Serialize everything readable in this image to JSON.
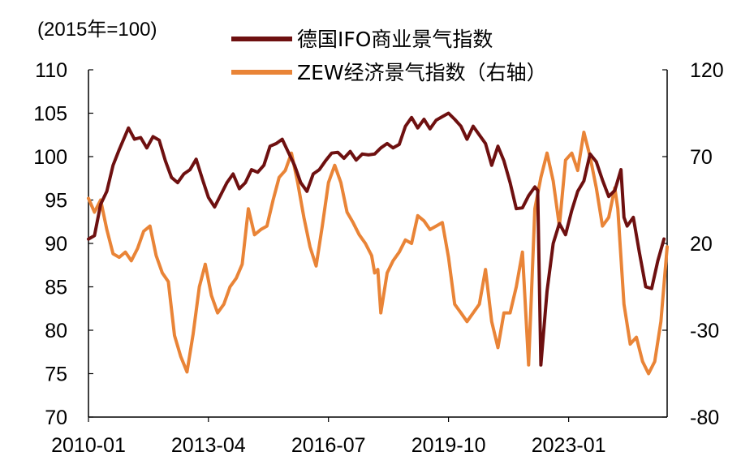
{
  "chart_data": {
    "type": "line",
    "unit_note": "(2015年=100)",
    "x_tick_labels": [
      "2010-01",
      "2013-04",
      "2016-07",
      "2019-10",
      "2023-01"
    ],
    "left_axis": {
      "ylim": [
        70,
        110
      ],
      "ticks": [
        "70",
        "75",
        "80",
        "85",
        "90",
        "95",
        "100",
        "105",
        "110"
      ]
    },
    "right_axis": {
      "ylim": [
        -80,
        120
      ],
      "ticks": [
        "-80",
        "-30",
        "20",
        "70",
        "120"
      ]
    },
    "grid": false,
    "legend_position": "top",
    "series": [
      {
        "name": "德国IFO商业景气指数",
        "axis": "left",
        "color": "#6e1010",
        "points": [
          [
            "2010-01",
            90.5
          ],
          [
            "2010-03",
            90.9
          ],
          [
            "2010-05",
            94.5
          ],
          [
            "2010-07",
            96.0
          ],
          [
            "2010-09",
            99.0
          ],
          [
            "2010-11",
            100.8
          ],
          [
            "2011-02",
            103.3
          ],
          [
            "2011-04",
            102.0
          ],
          [
            "2011-06",
            102.2
          ],
          [
            "2011-08",
            101.0
          ],
          [
            "2011-10",
            102.3
          ],
          [
            "2011-12",
            101.9
          ],
          [
            "2012-02",
            99.5
          ],
          [
            "2012-04",
            97.6
          ],
          [
            "2012-06",
            97.0
          ],
          [
            "2012-08",
            98.0
          ],
          [
            "2012-10",
            98.5
          ],
          [
            "2012-12",
            99.7
          ],
          [
            "2013-02",
            97.4
          ],
          [
            "2013-04",
            95.3
          ],
          [
            "2013-06",
            94.2
          ],
          [
            "2013-08",
            95.6
          ],
          [
            "2013-10",
            97.0
          ],
          [
            "2013-12",
            98.0
          ],
          [
            "2014-02",
            96.3
          ],
          [
            "2014-04",
            97.0
          ],
          [
            "2014-06",
            98.5
          ],
          [
            "2014-08",
            98.2
          ],
          [
            "2014-10",
            99.0
          ],
          [
            "2014-12",
            101.2
          ],
          [
            "2015-02",
            101.5
          ],
          [
            "2015-04",
            102.0
          ],
          [
            "2015-06",
            100.5
          ],
          [
            "2015-08",
            99.0
          ],
          [
            "2015-10",
            97.0
          ],
          [
            "2015-12",
            96.0
          ],
          [
            "2016-02",
            98.0
          ],
          [
            "2016-04",
            98.5
          ],
          [
            "2016-06",
            99.5
          ],
          [
            "2016-08",
            100.4
          ],
          [
            "2016-10",
            100.5
          ],
          [
            "2016-12",
            99.8
          ],
          [
            "2017-02",
            100.6
          ],
          [
            "2017-04",
            99.6
          ],
          [
            "2017-06",
            100.3
          ],
          [
            "2017-08",
            100.2
          ],
          [
            "2017-10",
            100.3
          ],
          [
            "2017-12",
            101.0
          ],
          [
            "2018-02",
            101.5
          ],
          [
            "2018-04",
            101.0
          ],
          [
            "2018-06",
            101.4
          ],
          [
            "2018-08",
            103.5
          ],
          [
            "2018-10",
            104.5
          ],
          [
            "2018-12",
            103.3
          ],
          [
            "2019-02",
            104.3
          ],
          [
            "2019-04",
            103.2
          ],
          [
            "2019-06",
            104.2
          ],
          [
            "2019-08",
            104.6
          ],
          [
            "2019-10",
            105.0
          ],
          [
            "2019-12",
            104.3
          ],
          [
            "2020-02",
            103.5
          ],
          [
            "2020-04",
            102.0
          ],
          [
            "2020-06",
            103.5
          ],
          [
            "2020-08",
            102.5
          ],
          [
            "2020-10",
            101.5
          ],
          [
            "2020-12",
            99.0
          ],
          [
            "2021-02",
            101.2
          ],
          [
            "2021-04",
            99.5
          ],
          [
            "2021-06",
            97.0
          ],
          [
            "2021-08",
            94.0
          ],
          [
            "2021-10",
            94.1
          ],
          [
            "2021-12",
            95.5
          ],
          [
            "2022-02",
            96.5
          ],
          [
            "2022-03",
            96.1
          ],
          [
            "2022-04",
            76.0
          ],
          [
            "2022-06",
            84.5
          ],
          [
            "2022-08",
            90.0
          ],
          [
            "2022-10",
            92.3
          ],
          [
            "2022-12",
            91.0
          ],
          [
            "2023-02",
            93.8
          ],
          [
            "2023-04",
            96.0
          ],
          [
            "2023-06",
            97.2
          ],
          [
            "2023-08",
            100.3
          ],
          [
            "2023-10",
            99.4
          ],
          [
            "2023-12",
            97.3
          ],
          [
            "2024-02",
            95.4
          ],
          [
            "2024-04",
            96.1
          ],
          [
            "2024-06",
            98.5
          ],
          [
            "2024-07",
            93.0
          ],
          [
            "2024-08",
            92.0
          ],
          [
            "2024-10",
            93.0
          ],
          [
            "2024-12",
            88.9
          ],
          [
            "2025-02",
            85.0
          ],
          [
            "2025-04",
            84.8
          ],
          [
            "2025-06",
            88.0
          ],
          [
            "2025-08",
            90.5
          ]
        ]
      },
      {
        "name": "ZEW经济景气指数（右轴）",
        "axis": "right",
        "color": "#e98437",
        "points": [
          [
            "2010-01",
            46
          ],
          [
            "2010-03",
            38
          ],
          [
            "2010-05",
            45
          ],
          [
            "2010-07",
            28
          ],
          [
            "2010-09",
            14
          ],
          [
            "2010-11",
            12
          ],
          [
            "2011-01",
            15
          ],
          [
            "2011-03",
            10
          ],
          [
            "2011-05",
            17
          ],
          [
            "2011-07",
            27
          ],
          [
            "2011-09",
            30
          ],
          [
            "2011-11",
            13
          ],
          [
            "2012-01",
            3
          ],
          [
            "2012-03",
            -2
          ],
          [
            "2012-05",
            -33
          ],
          [
            "2012-07",
            -45
          ],
          [
            "2012-09",
            -54
          ],
          [
            "2012-11",
            -32
          ],
          [
            "2013-01",
            -5
          ],
          [
            "2013-03",
            8
          ],
          [
            "2013-05",
            -10
          ],
          [
            "2013-07",
            -20
          ],
          [
            "2013-09",
            -15
          ],
          [
            "2013-11",
            -5
          ],
          [
            "2014-01",
            0
          ],
          [
            "2014-03",
            8
          ],
          [
            "2014-05",
            40
          ],
          [
            "2014-07",
            25
          ],
          [
            "2014-09",
            28
          ],
          [
            "2014-11",
            30
          ],
          [
            "2015-01",
            45
          ],
          [
            "2015-03",
            58
          ],
          [
            "2015-05",
            62
          ],
          [
            "2015-07",
            72
          ],
          [
            "2015-09",
            55
          ],
          [
            "2015-11",
            35
          ],
          [
            "2016-01",
            18
          ],
          [
            "2016-03",
            7
          ],
          [
            "2016-05",
            30
          ],
          [
            "2016-07",
            55
          ],
          [
            "2016-09",
            65
          ],
          [
            "2016-11",
            55
          ],
          [
            "2017-01",
            38
          ],
          [
            "2017-03",
            32
          ],
          [
            "2017-05",
            25
          ],
          [
            "2017-07",
            20
          ],
          [
            "2017-09",
            13
          ],
          [
            "2017-10",
            3
          ],
          [
            "2017-11",
            5
          ],
          [
            "2017-12",
            -20
          ],
          [
            "2018-02",
            3
          ],
          [
            "2018-04",
            10
          ],
          [
            "2018-06",
            15
          ],
          [
            "2018-08",
            22
          ],
          [
            "2018-10",
            20
          ],
          [
            "2018-12",
            36
          ],
          [
            "2019-02",
            33
          ],
          [
            "2019-04",
            28
          ],
          [
            "2019-06",
            30
          ],
          [
            "2019-08",
            32
          ],
          [
            "2019-10",
            12
          ],
          [
            "2019-12",
            -15
          ],
          [
            "2020-02",
            -20
          ],
          [
            "2020-04",
            -25
          ],
          [
            "2020-06",
            -20
          ],
          [
            "2020-08",
            -15
          ],
          [
            "2020-10",
            5
          ],
          [
            "2020-12",
            -25
          ],
          [
            "2021-02",
            -40
          ],
          [
            "2021-04",
            -20
          ],
          [
            "2021-06",
            -20
          ],
          [
            "2021-08",
            -5
          ],
          [
            "2021-10",
            15
          ],
          [
            "2021-12",
            -50
          ],
          [
            "2022-02",
            40
          ],
          [
            "2022-04",
            58
          ],
          [
            "2022-06",
            72
          ],
          [
            "2022-08",
            56
          ],
          [
            "2022-10",
            30
          ],
          [
            "2022-12",
            68
          ],
          [
            "2023-02",
            72
          ],
          [
            "2023-04",
            62
          ],
          [
            "2023-06",
            84
          ],
          [
            "2023-08",
            70
          ],
          [
            "2023-10",
            52
          ],
          [
            "2023-12",
            30
          ],
          [
            "2024-02",
            35
          ],
          [
            "2024-04",
            52
          ],
          [
            "2024-05",
            40
          ],
          [
            "2024-07",
            -15
          ],
          [
            "2024-09",
            -38
          ],
          [
            "2024-11",
            -34
          ],
          [
            "2025-01",
            -48
          ],
          [
            "2025-03",
            -55
          ],
          [
            "2025-05",
            -48
          ],
          [
            "2025-07",
            -25
          ],
          [
            "2025-09",
            18
          ]
        ]
      }
    ]
  }
}
